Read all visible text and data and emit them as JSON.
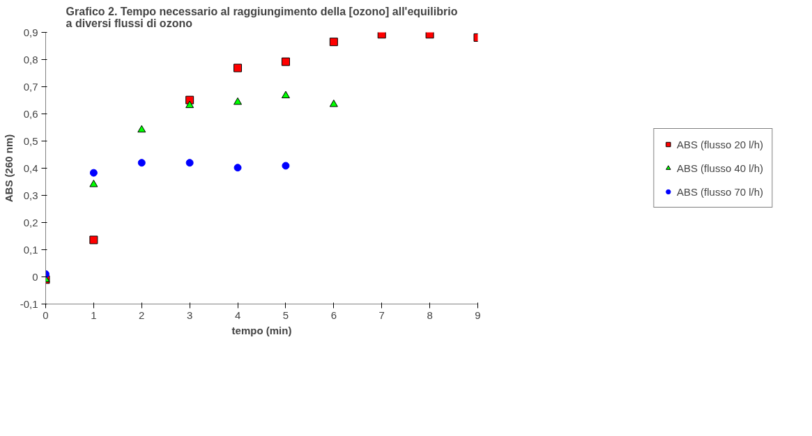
{
  "chart_data": {
    "type": "scatter",
    "title": "Grafico 2. Tempo necessario al raggiungimento della [ozono] all'equilibrio a diversi flussi di ozono",
    "xlabel": "tempo (min)",
    "ylabel": "ABS (260 nm)",
    "xlim": [
      0,
      9
    ],
    "xticks": [
      0,
      1,
      2,
      3,
      4,
      5,
      6,
      7,
      8,
      9
    ],
    "ylim": [
      -0.1,
      0.9
    ],
    "yticks": [
      {
        "value": -0.1,
        "label": "-0,1"
      },
      {
        "value": 0,
        "label": "0"
      },
      {
        "value": 0.1,
        "label": "0,1"
      },
      {
        "value": 0.2,
        "label": "0,2"
      },
      {
        "value": 0.3,
        "label": "0,3"
      },
      {
        "value": 0.4,
        "label": "0,4"
      },
      {
        "value": 0.5,
        "label": "0,5"
      },
      {
        "value": 0.6,
        "label": "0,6"
      },
      {
        "value": 0.7,
        "label": "0,7"
      },
      {
        "value": 0.8,
        "label": "0,8"
      },
      {
        "value": 0.9,
        "label": "0,9"
      }
    ],
    "grid": false,
    "legend": "right",
    "series": [
      {
        "name": "ABS (flusso 20 l/h)",
        "color": "#ff0000",
        "marker": "square",
        "x": [
          0,
          1,
          3,
          4,
          5,
          6,
          7,
          8,
          9
        ],
        "values": [
          -0.01,
          0.136,
          0.651,
          0.769,
          0.792,
          0.865,
          0.893,
          0.893,
          0.881
        ]
      },
      {
        "name": "ABS (flusso 40 l/h)",
        "color": "#00ff00",
        "marker": "triangle",
        "x": [
          0,
          1,
          2,
          3,
          4,
          5,
          6
        ],
        "values": [
          -0.01,
          0.34,
          0.541,
          0.631,
          0.643,
          0.667,
          0.635
        ]
      },
      {
        "name": "ABS (flusso 70 l/h)",
        "color": "#0000ff",
        "marker": "circle",
        "x": [
          0,
          1,
          2,
          3,
          4,
          5
        ],
        "values": [
          0.01,
          0.383,
          0.42,
          0.42,
          0.402,
          0.409
        ]
      }
    ]
  }
}
